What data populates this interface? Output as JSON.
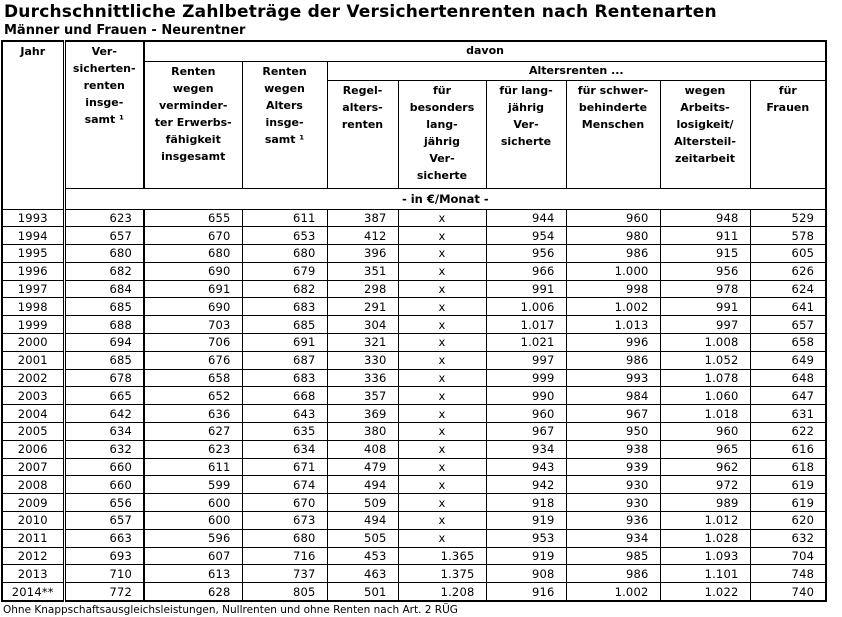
{
  "title": "Durchschnittliche Zahlbeträge der Versichertenrenten nach Rentenarten",
  "subtitle": "Männer und Frauen - Neurentner",
  "table": {
    "col_jahr": "Jahr",
    "col_versicherten": "Ver-\nsicherten-\nrenten\ninsge-\nsamt ¹",
    "davon_label": "davon",
    "col_erwerbsminderung": "Renten\nwegen\nverminder-\nter Erwerbs-\nfähigkeit\ninsgesamt",
    "col_alters_insgesamt": "Renten\nwegen\nAlters\ninsge-\nsamt ¹",
    "altersrenten_label": "Altersrenten ...",
    "subcols": [
      "Regel-\nalters-\nrenten",
      "für\nbesonders\nlang-\njährig\nVer-\nsicherte",
      "für lang-\njährig\nVer-\nsicherte",
      "für schwer-\nbehinderte\nMenschen",
      "wegen\nArbeits-\nlosigkeit/\nAltersteil-\nzeitarbeit",
      "für\nFrauen"
    ],
    "unit_label": "- in €/Monat -",
    "rows": [
      [
        "1993",
        "623",
        "655",
        "611",
        "387",
        "x",
        "944",
        "960",
        "948",
        "529"
      ],
      [
        "1994",
        "657",
        "670",
        "653",
        "412",
        "x",
        "954",
        "980",
        "911",
        "578"
      ],
      [
        "1995",
        "680",
        "680",
        "680",
        "396",
        "x",
        "956",
        "986",
        "915",
        "605"
      ],
      [
        "1996",
        "682",
        "690",
        "679",
        "351",
        "x",
        "966",
        "1.000",
        "956",
        "626"
      ],
      [
        "1997",
        "684",
        "691",
        "682",
        "298",
        "x",
        "991",
        "998",
        "978",
        "624"
      ],
      [
        "1998",
        "685",
        "690",
        "683",
        "291",
        "x",
        "1.006",
        "1.002",
        "991",
        "641"
      ],
      [
        "1999",
        "688",
        "703",
        "685",
        "304",
        "x",
        "1.017",
        "1.013",
        "997",
        "657"
      ],
      [
        "2000",
        "694",
        "706",
        "691",
        "321",
        "x",
        "1.021",
        "996",
        "1.008",
        "658"
      ],
      [
        "2001",
        "685",
        "676",
        "687",
        "330",
        "x",
        "997",
        "986",
        "1.052",
        "649"
      ],
      [
        "2002",
        "678",
        "658",
        "683",
        "336",
        "x",
        "999",
        "993",
        "1.078",
        "648"
      ],
      [
        "2003",
        "665",
        "652",
        "668",
        "357",
        "x",
        "990",
        "984",
        "1.060",
        "647"
      ],
      [
        "2004",
        "642",
        "636",
        "643",
        "369",
        "x",
        "960",
        "967",
        "1.018",
        "631"
      ],
      [
        "2005",
        "634",
        "627",
        "635",
        "380",
        "x",
        "967",
        "950",
        "960",
        "622"
      ],
      [
        "2006",
        "632",
        "623",
        "634",
        "408",
        "x",
        "934",
        "938",
        "965",
        "616"
      ],
      [
        "2007",
        "660",
        "611",
        "671",
        "479",
        "x",
        "943",
        "939",
        "962",
        "618"
      ],
      [
        "2008",
        "660",
        "599",
        "674",
        "494",
        "x",
        "942",
        "930",
        "972",
        "619"
      ],
      [
        "2009",
        "656",
        "600",
        "670",
        "509",
        "x",
        "918",
        "930",
        "989",
        "619"
      ],
      [
        "2010",
        "657",
        "600",
        "673",
        "494",
        "x",
        "919",
        "936",
        "1.012",
        "620"
      ],
      [
        "2011",
        "663",
        "596",
        "680",
        "505",
        "x",
        "953",
        "934",
        "1.028",
        "632"
      ],
      [
        "2012",
        "693",
        "607",
        "716",
        "453",
        "1.365",
        "919",
        "985",
        "1.093",
        "704"
      ],
      [
        "2013",
        "710",
        "613",
        "737",
        "463",
        "1.375",
        "908",
        "986",
        "1.101",
        "748"
      ],
      [
        "2014**",
        "772",
        "628",
        "805",
        "501",
        "1.208",
        "916",
        "1.002",
        "1.022",
        "740"
      ]
    ]
  },
  "footnote": "Ohne Knappschaftsausgleichsleistungen, Nullrenten und ohne Renten nach Art. 2 RÜG"
}
